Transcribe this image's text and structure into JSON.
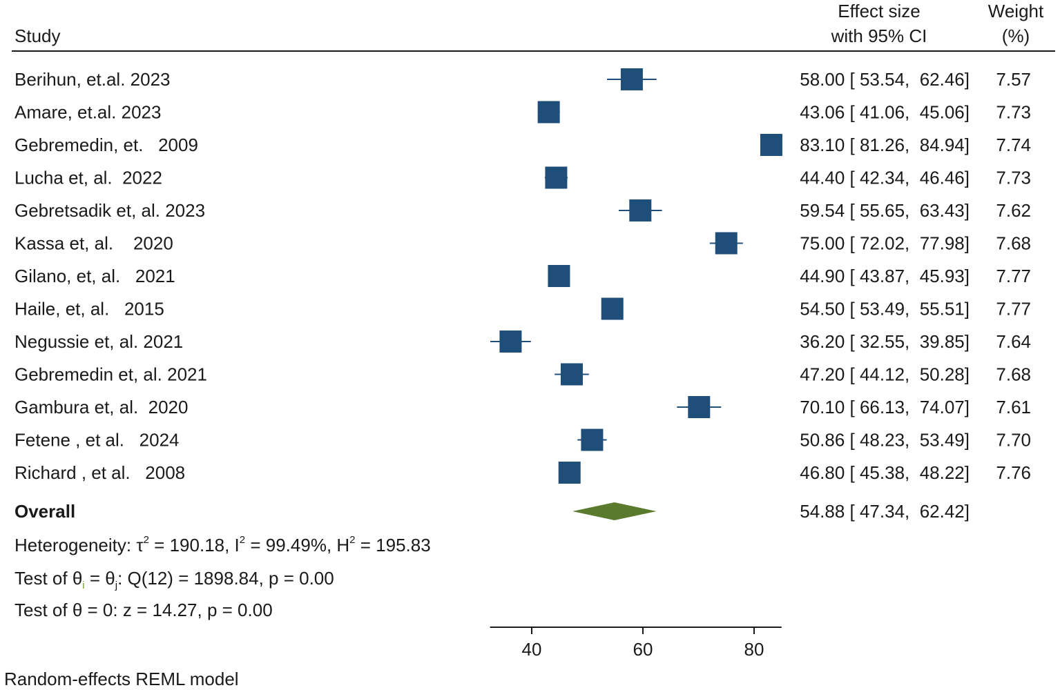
{
  "chart_data": {
    "type": "forest",
    "header": {
      "study": "Study",
      "effect_line1": "Effect size",
      "effect_line2": "with 95% CI",
      "weight_line1": "Weight",
      "weight_line2": "(%)"
    },
    "studies": [
      {
        "label": "Berihun, et.al. 2023",
        "es": 58.0,
        "lo": 53.54,
        "hi": 62.46,
        "ci_text": "58.00 [ 53.54,  62.46]",
        "weight": "7.57"
      },
      {
        "label": "Amare, et.al. 2023",
        "es": 43.06,
        "lo": 41.06,
        "hi": 45.06,
        "ci_text": "43.06 [ 41.06,  45.06]",
        "weight": "7.73"
      },
      {
        "label": "Gebremedin, et.   2009",
        "es": 83.1,
        "lo": 81.26,
        "hi": 84.94,
        "ci_text": "83.10 [ 81.26,  84.94]",
        "weight": "7.74"
      },
      {
        "label": "Lucha et, al.  2022",
        "es": 44.4,
        "lo": 42.34,
        "hi": 46.46,
        "ci_text": "44.40 [ 42.34,  46.46]",
        "weight": "7.73"
      },
      {
        "label": "Gebretsadik et, al. 2023",
        "es": 59.54,
        "lo": 55.65,
        "hi": 63.43,
        "ci_text": "59.54 [ 55.65,  63.43]",
        "weight": "7.62"
      },
      {
        "label": "Kassa et, al.    2020",
        "es": 75.0,
        "lo": 72.02,
        "hi": 77.98,
        "ci_text": "75.00 [ 72.02,  77.98]",
        "weight": "7.68"
      },
      {
        "label": "Gilano, et, al.   2021",
        "es": 44.9,
        "lo": 43.87,
        "hi": 45.93,
        "ci_text": "44.90 [ 43.87,  45.93]",
        "weight": "7.77"
      },
      {
        "label": "Haile, et, al.   2015",
        "es": 54.5,
        "lo": 53.49,
        "hi": 55.51,
        "ci_text": "54.50 [ 53.49,  55.51]",
        "weight": "7.77"
      },
      {
        "label": "Negussie et, al. 2021",
        "es": 36.2,
        "lo": 32.55,
        "hi": 39.85,
        "ci_text": "36.20 [ 32.55,  39.85]",
        "weight": "7.64"
      },
      {
        "label": "Gebremedin et, al. 2021",
        "es": 47.2,
        "lo": 44.12,
        "hi": 50.28,
        "ci_text": "47.20 [ 44.12,  50.28]",
        "weight": "7.68"
      },
      {
        "label": "Gambura et, al.  2020",
        "es": 70.1,
        "lo": 66.13,
        "hi": 74.07,
        "ci_text": "70.10 [ 66.13,  74.07]",
        "weight": "7.61"
      },
      {
        "label": "Fetene , et al.   2024",
        "es": 50.86,
        "lo": 48.23,
        "hi": 53.49,
        "ci_text": "50.86 [ 48.23,  53.49]",
        "weight": "7.70"
      },
      {
        "label": "Richard , et al.   2008",
        "es": 46.8,
        "lo": 45.38,
        "hi": 48.22,
        "ci_text": "46.80 [ 45.38,  48.22]",
        "weight": "7.76"
      }
    ],
    "overall": {
      "label": "Overall",
      "es": 54.88,
      "lo": 47.34,
      "hi": 62.42,
      "ci_text": "54.88 [ 47.34,  62.42]"
    },
    "heterogeneity": {
      "prefix": "Heterogeneity: τ",
      "tau_sup": "2",
      "tau_val": " = 190.18, I",
      "i_sup": "2",
      "i_val": " = 99.49%, H",
      "h_sup": "2",
      "h_val": " = 195.83"
    },
    "test_homogeneity": {
      "part1": "Test of θ",
      "sub_i": "i",
      "part2": " = θ",
      "sub_j": "j",
      "part3": ": Q(12) = 1898.84, p = 0.00"
    },
    "test_effect": "Test of θ = 0: z = 14.27, p = 0.00",
    "x_axis": {
      "ticks": [
        40,
        60,
        80
      ],
      "tick_labels": [
        "40",
        "60",
        "80"
      ],
      "range": [
        32.5,
        84.94
      ]
    },
    "model_note": "Random-effects REML model",
    "colors": {
      "study_marker": "#1f4e79",
      "overall_diamond": "#5a7a2e",
      "sub_i_color": "#6a9a2a",
      "text": "#1a1a1a"
    }
  }
}
